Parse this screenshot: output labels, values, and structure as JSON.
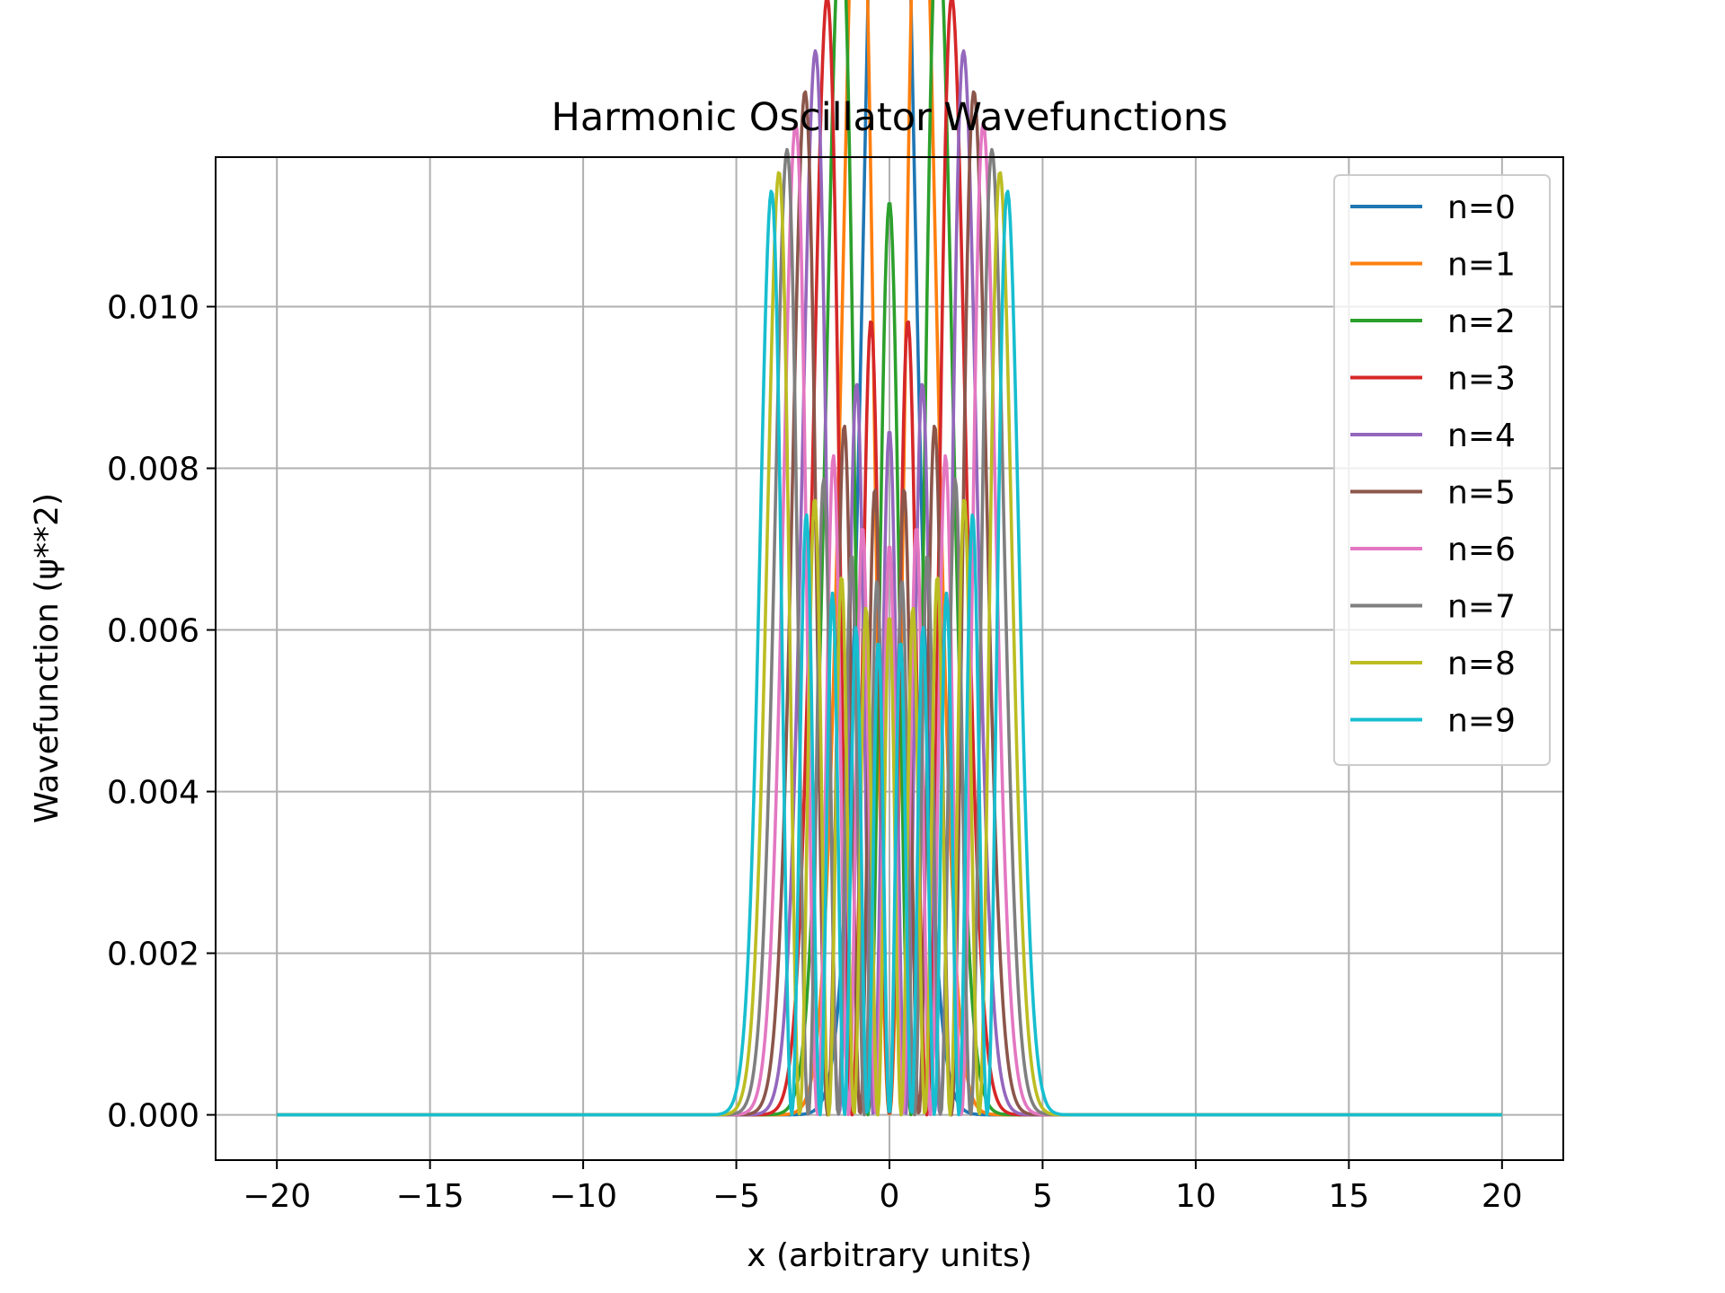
{
  "chart_data": {
    "type": "line",
    "title": "Harmonic Oscillator Wavefunctions",
    "xlabel": "x (arbitrary units)",
    "ylabel": "Wavefunction (ψ**2)",
    "xlim": [
      -22,
      22
    ],
    "ylim": [
      -0.00056,
      0.01185
    ],
    "xticks": [
      -20,
      -15,
      -10,
      -5,
      0,
      5,
      10,
      15,
      20
    ],
    "xtick_labels": [
      "−20",
      "−15",
      "−10",
      "−5",
      "0",
      "5",
      "10",
      "15",
      "20"
    ],
    "yticks": [
      0.0,
      0.002,
      0.004,
      0.006,
      0.008,
      0.01
    ],
    "ytick_labels": [
      "0.000",
      "0.002",
      "0.004",
      "0.006",
      "0.008",
      "0.010"
    ],
    "grid": true,
    "legend_position": "top-right",
    "x_range": [
      -20,
      20
    ],
    "series": [
      {
        "name": "n=0",
        "n": 0,
        "color": "#1f77b4"
      },
      {
        "name": "n=1",
        "n": 1,
        "color": "#ff7f0e"
      },
      {
        "name": "n=2",
        "n": 2,
        "color": "#2ca02c"
      },
      {
        "name": "n=3",
        "n": 3,
        "color": "#d62728"
      },
      {
        "name": "n=4",
        "n": 4,
        "color": "#9467bd"
      },
      {
        "name": "n=5",
        "n": 5,
        "color": "#8c564b"
      },
      {
        "name": "n=6",
        "n": 6,
        "color": "#e377c2"
      },
      {
        "name": "n=7",
        "n": 7,
        "color": "#7f7f7f"
      },
      {
        "name": "n=8",
        "n": 8,
        "color": "#bcbd22"
      },
      {
        "name": "n=9",
        "n": 9,
        "color": "#17becf"
      }
    ]
  }
}
